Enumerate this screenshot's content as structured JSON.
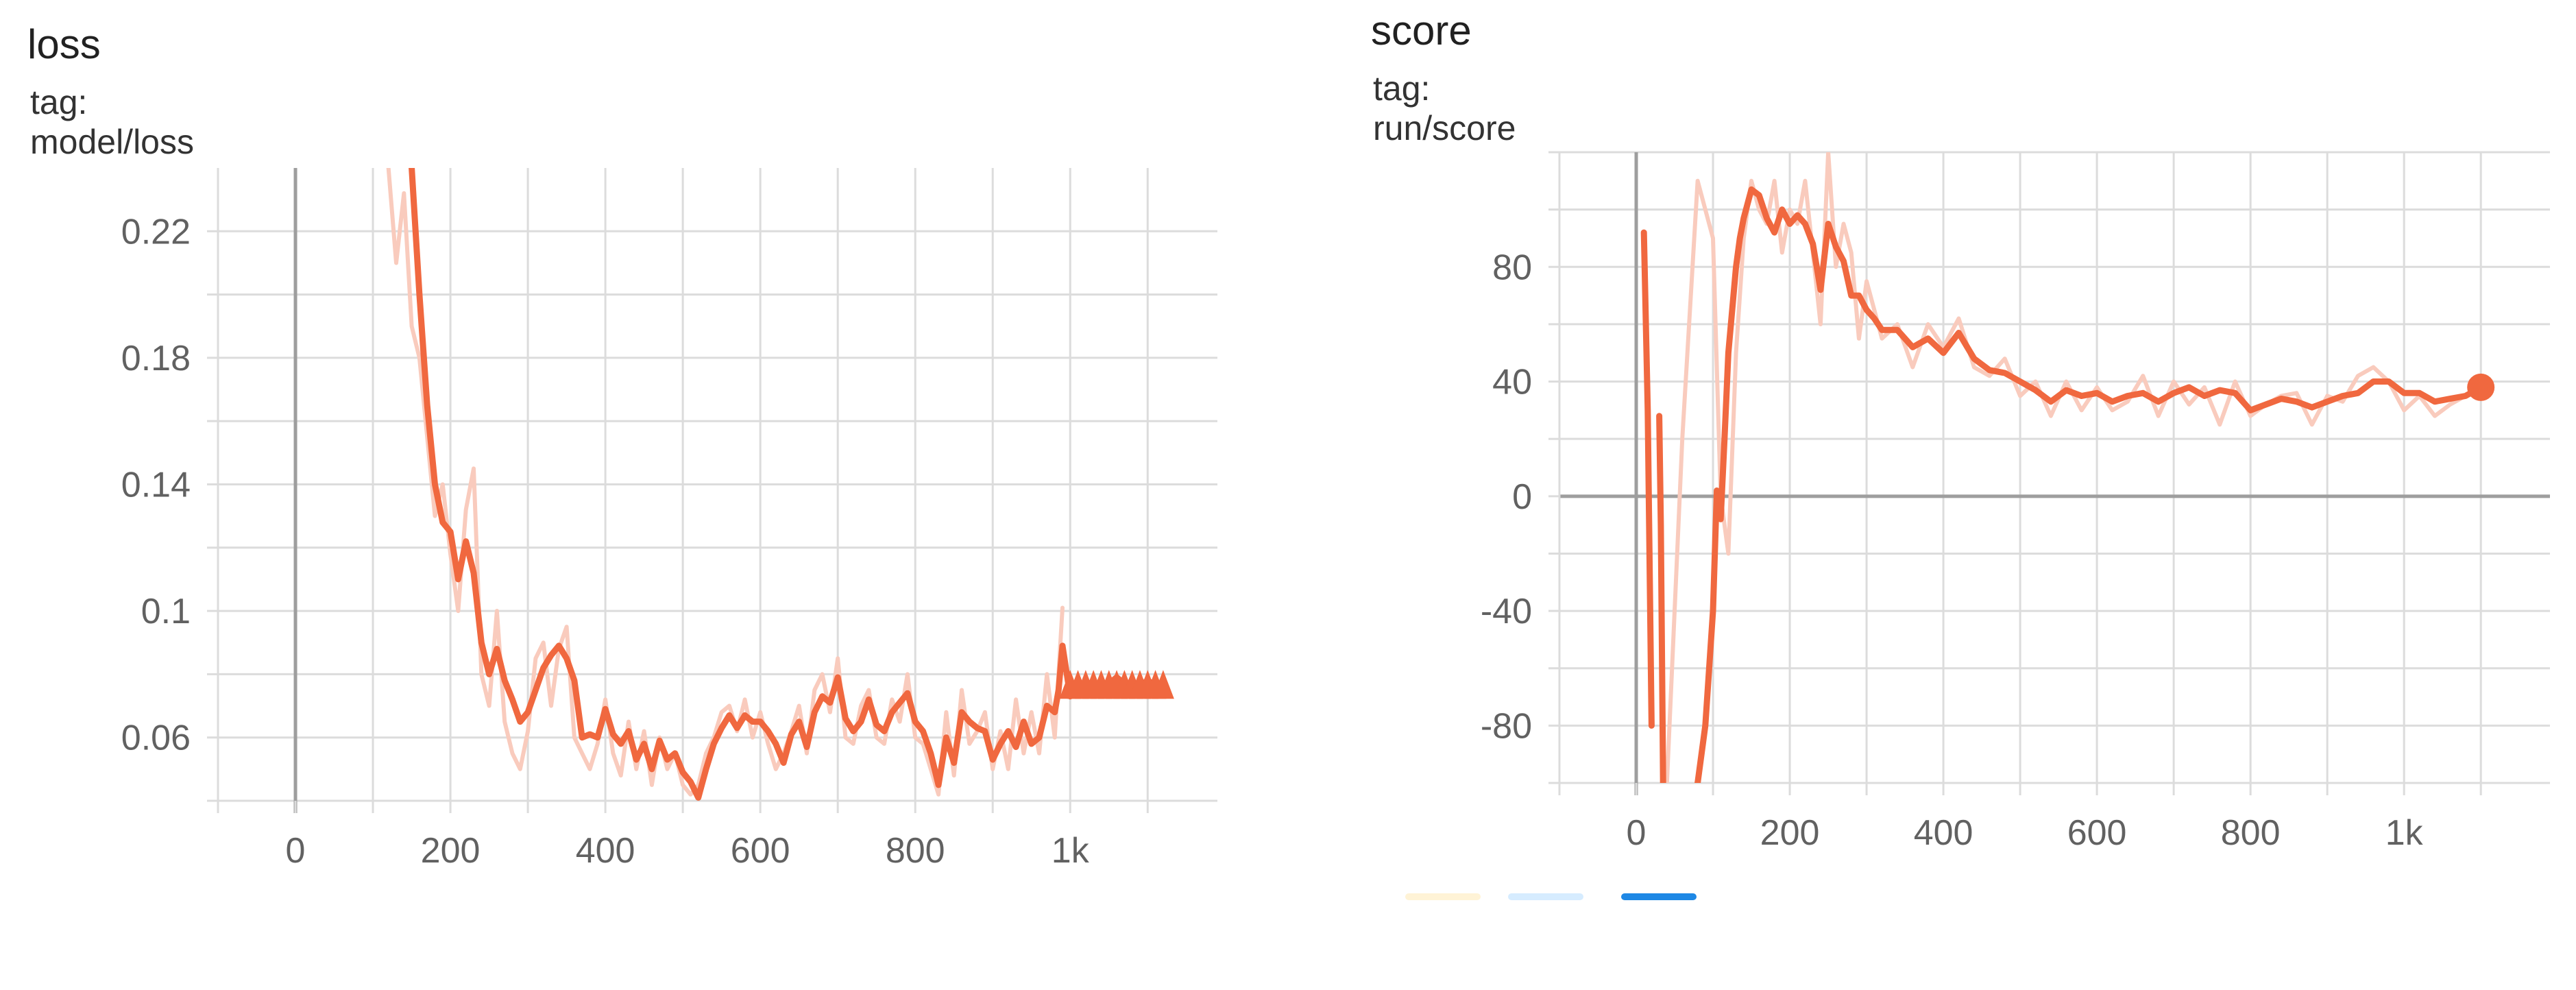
{
  "charts": {
    "loss": {
      "title": "loss",
      "tag": "tag: model/loss"
    },
    "score": {
      "title": "score",
      "tag": "tag: run/score"
    }
  },
  "colors": {
    "line": "#f0683f",
    "raw_line": "#f9cbbd",
    "grid": "#dcdcdc",
    "zero_axis": "#9e9e9e",
    "footer_swatches": [
      "#fff3d6",
      "#d6ecff",
      "#1e88e5"
    ]
  },
  "chart_data": [
    {
      "type": "line",
      "title": "loss",
      "subtitle": "tag: model/loss",
      "xlabel": "",
      "ylabel": "",
      "xlim": [
        -100,
        1190
      ],
      "ylim": [
        0.04,
        0.24
      ],
      "x_ticks": [
        0,
        200,
        400,
        600,
        800,
        1000
      ],
      "x_tick_labels": [
        "0",
        "200",
        "400",
        "600",
        "800",
        "1k"
      ],
      "y_ticks": [
        0.06,
        0.1,
        0.14,
        0.18,
        0.22
      ],
      "y_tick_labels": [
        "0.06",
        "0.1",
        "0.14",
        "0.18",
        "0.22"
      ],
      "grid": true,
      "series": [
        {
          "style": "smoothed",
          "x": [
            150,
            160,
            170,
            180,
            190,
            200,
            210,
            220,
            230,
            240,
            250,
            260,
            270,
            280,
            290,
            300,
            310,
            320,
            330,
            340,
            350,
            360,
            370,
            380,
            390,
            400,
            410,
            420,
            430,
            440,
            450,
            460,
            470,
            480,
            490,
            500,
            510,
            520,
            530,
            540,
            550,
            560,
            570,
            580,
            590,
            600,
            610,
            620,
            630,
            640,
            650,
            660,
            670,
            680,
            690,
            700,
            710,
            720,
            730,
            740,
            750,
            760,
            770,
            780,
            790,
            800,
            810,
            820,
            830,
            840,
            850,
            860,
            870,
            880,
            890,
            900,
            910,
            920,
            930,
            940,
            950,
            960,
            970,
            980,
            985,
            990,
            1000,
            1020,
            1040,
            1060,
            1080,
            1100,
            1120
          ],
          "y": [
            0.24,
            0.2,
            0.165,
            0.14,
            0.128,
            0.125,
            0.11,
            0.122,
            0.112,
            0.09,
            0.08,
            0.088,
            0.078,
            0.072,
            0.065,
            0.068,
            0.075,
            0.082,
            0.086,
            0.089,
            0.085,
            0.078,
            0.06,
            0.061,
            0.06,
            0.069,
            0.061,
            0.058,
            0.062,
            0.053,
            0.058,
            0.05,
            0.059,
            0.053,
            0.055,
            0.049,
            0.046,
            0.041,
            0.05,
            0.058,
            0.063,
            0.067,
            0.063,
            0.067,
            0.065,
            0.065,
            0.062,
            0.058,
            0.052,
            0.061,
            0.065,
            0.057,
            0.068,
            0.073,
            0.071,
            0.079,
            0.066,
            0.062,
            0.065,
            0.072,
            0.064,
            0.062,
            0.068,
            0.071,
            0.074,
            0.065,
            0.062,
            0.055,
            0.045,
            0.06,
            0.052,
            0.068,
            0.065,
            0.063,
            0.062,
            0.053,
            0.058,
            0.062,
            0.057,
            0.065,
            0.058,
            0.06,
            0.07,
            0.068,
            0.075,
            0.089,
            0.073,
            0.077,
            0.075,
            0.079,
            0.075,
            0.078,
            0.075
          ]
        },
        {
          "style": "raw",
          "x": [
            120,
            130,
            140,
            150,
            160,
            170,
            180,
            190,
            200,
            210,
            220,
            230,
            240,
            250,
            260,
            270,
            280,
            290,
            300,
            310,
            320,
            330,
            340,
            350,
            360,
            370,
            380,
            390,
            400,
            410,
            420,
            430,
            440,
            450,
            460,
            470,
            480,
            490,
            500,
            510,
            520,
            530,
            540,
            550,
            560,
            570,
            580,
            590,
            600,
            610,
            620,
            630,
            640,
            650,
            660,
            670,
            680,
            690,
            700,
            710,
            720,
            730,
            740,
            750,
            760,
            770,
            780,
            790,
            800,
            810,
            820,
            830,
            840,
            850,
            860,
            870,
            880,
            890,
            900,
            910,
            920,
            930,
            940,
            950,
            960,
            970,
            980,
            990
          ],
          "y": [
            0.24,
            0.21,
            0.232,
            0.19,
            0.18,
            0.155,
            0.13,
            0.14,
            0.118,
            0.1,
            0.132,
            0.145,
            0.08,
            0.07,
            0.1,
            0.065,
            0.055,
            0.05,
            0.062,
            0.085,
            0.09,
            0.07,
            0.088,
            0.095,
            0.06,
            0.055,
            0.05,
            0.058,
            0.072,
            0.055,
            0.048,
            0.065,
            0.05,
            0.062,
            0.045,
            0.06,
            0.05,
            0.055,
            0.045,
            0.042,
            0.045,
            0.055,
            0.06,
            0.068,
            0.07,
            0.062,
            0.072,
            0.06,
            0.068,
            0.058,
            0.05,
            0.055,
            0.062,
            0.07,
            0.055,
            0.075,
            0.08,
            0.068,
            0.085,
            0.06,
            0.058,
            0.07,
            0.075,
            0.06,
            0.058,
            0.072,
            0.065,
            0.08,
            0.06,
            0.058,
            0.05,
            0.042,
            0.068,
            0.048,
            0.075,
            0.058,
            0.062,
            0.068,
            0.05,
            0.062,
            0.05,
            0.072,
            0.055,
            0.068,
            0.055,
            0.08,
            0.06,
            0.101
          ]
        }
      ],
      "marker": {
        "from_x": 1000,
        "to_x": 1120,
        "y": 0.077,
        "shape": "triangles"
      }
    },
    {
      "type": "line",
      "title": "score",
      "subtitle": "tag: run/score",
      "xlabel": "",
      "ylabel": "",
      "xlim": [
        -100,
        1190
      ],
      "ylim": [
        -100,
        120
      ],
      "x_ticks": [
        0,
        200,
        400,
        600,
        800,
        1000
      ],
      "x_tick_labels": [
        "0",
        "200",
        "400",
        "600",
        "800",
        "1k"
      ],
      "y_ticks": [
        -80,
        -40,
        0,
        40,
        80
      ],
      "y_tick_labels": [
        "-80",
        "-40",
        "0",
        "40",
        "80"
      ],
      "grid": true,
      "series": [
        {
          "style": "smoothed",
          "x": [
            10,
            15,
            20,
            25,
            30,
            32,
            35,
            40,
            60,
            80,
            90,
            95,
            100,
            105,
            110,
            115,
            120,
            125,
            130,
            135,
            140,
            150,
            160,
            170,
            180,
            190,
            200,
            210,
            220,
            230,
            240,
            250,
            260,
            270,
            280,
            290,
            300,
            310,
            320,
            340,
            360,
            380,
            400,
            420,
            440,
            460,
            480,
            500,
            520,
            540,
            560,
            580,
            600,
            620,
            640,
            660,
            680,
            700,
            720,
            740,
            760,
            780,
            800,
            820,
            840,
            860,
            880,
            900,
            920,
            940,
            960,
            980,
            1000,
            1020,
            1040,
            1060,
            1080,
            1100
          ],
          "y": [
            92,
            30,
            -80,
            null,
            28,
            -10,
            -100,
            null,
            null,
            -100,
            -80,
            -60,
            -40,
            2,
            -8,
            20,
            50,
            65,
            80,
            90,
            97,
            107,
            105,
            97,
            92,
            100,
            95,
            98,
            95,
            88,
            72,
            95,
            87,
            82,
            70,
            70,
            65,
            62,
            58,
            58,
            52,
            55,
            50,
            57,
            48,
            44,
            43,
            40,
            37,
            33,
            37,
            35,
            36,
            33,
            35,
            36,
            33,
            36,
            38,
            35,
            37,
            36,
            30,
            32,
            34,
            33,
            31,
            33,
            35,
            36,
            40,
            40,
            36,
            36,
            33,
            34,
            35,
            38
          ]
        },
        {
          "style": "raw",
          "x": [
            40,
            60,
            80,
            100,
            110,
            120,
            130,
            140,
            150,
            160,
            170,
            180,
            190,
            200,
            210,
            220,
            230,
            240,
            250,
            260,
            270,
            280,
            290,
            300,
            320,
            340,
            360,
            380,
            400,
            420,
            440,
            460,
            480,
            500,
            520,
            540,
            560,
            580,
            600,
            620,
            640,
            660,
            680,
            700,
            720,
            740,
            760,
            780,
            800,
            820,
            840,
            860,
            880,
            900,
            920,
            940,
            960,
            980,
            1000,
            1020,
            1040,
            1060,
            1080,
            1100
          ],
          "y": [
            -100,
            20,
            110,
            90,
            0,
            -20,
            50,
            90,
            110,
            100,
            95,
            110,
            85,
            100,
            95,
            110,
            85,
            60,
            120,
            80,
            95,
            85,
            55,
            75,
            55,
            60,
            45,
            60,
            52,
            62,
            45,
            42,
            48,
            35,
            40,
            28,
            40,
            30,
            38,
            30,
            33,
            42,
            28,
            40,
            32,
            38,
            25,
            40,
            28,
            32,
            35,
            36,
            25,
            35,
            33,
            42,
            45,
            40,
            30,
            35,
            28,
            32,
            35,
            38
          ]
        }
      ],
      "end_point": {
        "x": 1100,
        "y": 38
      }
    }
  ]
}
